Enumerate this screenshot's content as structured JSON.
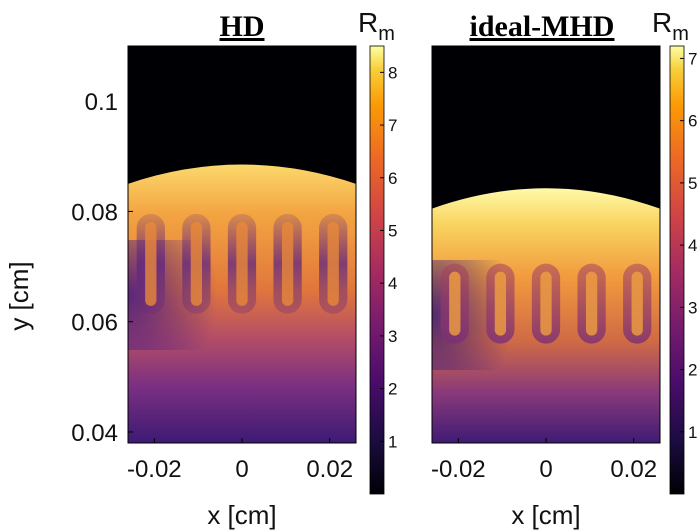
{
  "chart_data": [
    {
      "type": "heatmap",
      "title": "HD",
      "xlabel": "x [cm]",
      "ylabel": "y [cm]",
      "xlim": [
        -0.026,
        0.026
      ],
      "ylim": [
        0.038,
        0.11
      ],
      "xticks": [
        "-0.02",
        "0",
        "0.02"
      ],
      "xtick_values": [
        -0.02,
        0,
        0.02
      ],
      "yticks": [
        "0.04",
        "0.06",
        "0.08",
        "0.1"
      ],
      "ytick_values": [
        0.04,
        0.06,
        0.08,
        0.1
      ],
      "colorbar": {
        "label": "R",
        "label_sub": "m",
        "range": [
          0,
          8.5
        ],
        "ticks": [
          "1",
          "2",
          "3",
          "4",
          "5",
          "6",
          "7",
          "8"
        ],
        "tick_values": [
          1,
          2,
          3,
          4,
          5,
          6,
          7,
          8
        ]
      },
      "colormap": "inferno",
      "front_height_y": 0.0885,
      "front_edge_y": 0.085,
      "fingers": 5
    },
    {
      "type": "heatmap",
      "title": "ideal-MHD",
      "xlabel": "x [cm]",
      "ylabel": "",
      "xlim": [
        -0.026,
        0.026
      ],
      "ylim": [
        0.038,
        0.11
      ],
      "xticks": [
        "-0.02",
        "0",
        "0.02"
      ],
      "xtick_values": [
        -0.02,
        0,
        0.02
      ],
      "colorbar": {
        "label": "R",
        "label_sub": "m",
        "range": [
          0,
          7.2
        ],
        "ticks": [
          "1",
          "2",
          "3",
          "4",
          "5",
          "6",
          "7"
        ],
        "tick_values": [
          1,
          2,
          3,
          4,
          5,
          6,
          7
        ]
      },
      "colormap": "inferno",
      "front_height_y": 0.0842,
      "front_edge_y": 0.0805,
      "fingers": 5
    }
  ]
}
